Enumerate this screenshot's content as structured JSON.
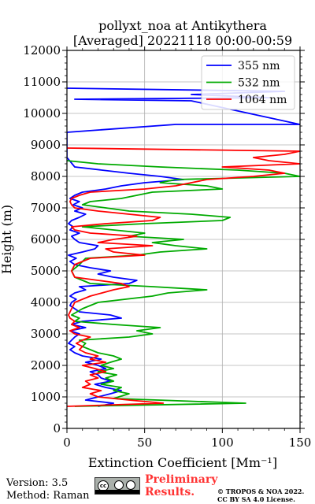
{
  "chart_data": {
    "type": "line",
    "title": "pollyxt_noa at Antikythera",
    "subtitle": "[Averaged] 20221118 00:00-00:59",
    "xlabel": "Extinction Coefficient [Mm⁻¹]",
    "ylabel": "Height (m)",
    "xlim": [
      0,
      150
    ],
    "ylim": [
      0,
      12000
    ],
    "x_ticks": [
      0,
      50,
      100,
      150
    ],
    "y_ticks": [
      0,
      1000,
      2000,
      3000,
      4000,
      5000,
      6000,
      7000,
      8000,
      9000,
      10000,
      11000,
      12000
    ],
    "grid": true,
    "legend_position": "top-right",
    "series": [
      {
        "name": "355 nm",
        "color": "#0000ff",
        "points": [
          [
            20,
            700
          ],
          [
            30,
            800
          ],
          [
            12,
            900
          ],
          [
            20,
            1000
          ],
          [
            28,
            1100
          ],
          [
            35,
            1200
          ],
          [
            25,
            1300
          ],
          [
            18,
            1400
          ],
          [
            28,
            1500
          ],
          [
            22,
            1600
          ],
          [
            20,
            1700
          ],
          [
            15,
            1800
          ],
          [
            25,
            1900
          ],
          [
            20,
            2000
          ],
          [
            12,
            2100
          ],
          [
            22,
            2200
          ],
          [
            10,
            2300
          ],
          [
            5,
            2400
          ],
          [
            2,
            2500
          ],
          [
            5,
            2600
          ],
          [
            1,
            2700
          ],
          [
            3,
            2800
          ],
          [
            5,
            2900
          ],
          [
            8,
            3000
          ],
          [
            2,
            3100
          ],
          [
            12,
            3200
          ],
          [
            3,
            3300
          ],
          [
            10,
            3400
          ],
          [
            35,
            3500
          ],
          [
            28,
            3600
          ],
          [
            8,
            3700
          ],
          [
            5,
            3800
          ],
          [
            2,
            3900
          ],
          [
            3,
            4000
          ],
          [
            6,
            4100
          ],
          [
            2,
            4200
          ],
          [
            5,
            4300
          ],
          [
            12,
            4400
          ],
          [
            8,
            4500
          ],
          [
            40,
            4600
          ],
          [
            45,
            4700
          ],
          [
            30,
            4800
          ],
          [
            20,
            4900
          ],
          [
            28,
            5000
          ],
          [
            15,
            5100
          ],
          [
            5,
            5200
          ],
          [
            2,
            5300
          ],
          [
            6,
            5400
          ],
          [
            1,
            5500
          ],
          [
            10,
            5600
          ],
          [
            18,
            5700
          ],
          [
            20,
            5800
          ],
          [
            8,
            5900
          ],
          [
            5,
            6000
          ],
          [
            3,
            6100
          ],
          [
            8,
            6200
          ],
          [
            2,
            6300
          ],
          [
            4,
            6400
          ],
          [
            1,
            6500
          ],
          [
            3,
            6600
          ],
          [
            8,
            6700
          ],
          [
            12,
            6800
          ],
          [
            5,
            6900
          ],
          [
            10,
            7000
          ],
          [
            4,
            7100
          ],
          [
            8,
            7200
          ],
          [
            2,
            7300
          ],
          [
            5,
            7400
          ],
          [
            10,
            7500
          ],
          [
            25,
            7600
          ],
          [
            35,
            7700
          ],
          [
            50,
            7800
          ],
          [
            75,
            7900
          ],
          [
            60,
            8000
          ],
          [
            40,
            8100
          ],
          [
            5,
            8300
          ],
          [
            0,
            8600
          ],
          [
            0,
            9000
          ],
          [
            0,
            9400
          ],
          [
            70,
            9650
          ],
          [
            150,
            9650
          ],
          [
            80,
            10400
          ],
          [
            5,
            10450
          ],
          [
            130,
            10500
          ],
          [
            80,
            10600
          ],
          [
            140,
            10700
          ],
          [
            0,
            10800
          ]
        ]
      },
      {
        "name": "532 nm",
        "color": "#00aa00",
        "points": [
          [
            5,
            700
          ],
          [
            115,
            800
          ],
          [
            30,
            950
          ],
          [
            40,
            1100
          ],
          [
            30,
            1200
          ],
          [
            35,
            1300
          ],
          [
            22,
            1400
          ],
          [
            30,
            1500
          ],
          [
            25,
            1600
          ],
          [
            32,
            1700
          ],
          [
            20,
            1800
          ],
          [
            30,
            1900
          ],
          [
            22,
            2000
          ],
          [
            28,
            2100
          ],
          [
            35,
            2200
          ],
          [
            30,
            2300
          ],
          [
            20,
            2400
          ],
          [
            15,
            2500
          ],
          [
            10,
            2600
          ],
          [
            12,
            2700
          ],
          [
            8,
            2800
          ],
          [
            40,
            2900
          ],
          [
            55,
            3000
          ],
          [
            45,
            3100
          ],
          [
            60,
            3200
          ],
          [
            30,
            3300
          ],
          [
            5,
            3400
          ],
          [
            8,
            3500
          ],
          [
            3,
            3600
          ],
          [
            10,
            3800
          ],
          [
            20,
            4000
          ],
          [
            55,
            4200
          ],
          [
            65,
            4300
          ],
          [
            90,
            4400
          ],
          [
            55,
            4500
          ],
          [
            15,
            4600
          ],
          [
            5,
            4800
          ],
          [
            3,
            5000
          ],
          [
            8,
            5200
          ],
          [
            12,
            5400
          ],
          [
            45,
            5500
          ],
          [
            60,
            5600
          ],
          [
            90,
            5700
          ],
          [
            70,
            5800
          ],
          [
            55,
            5900
          ],
          [
            75,
            6000
          ],
          [
            40,
            6100
          ],
          [
            50,
            6200
          ],
          [
            30,
            6300
          ],
          [
            10,
            6400
          ],
          [
            50,
            6500
          ],
          [
            100,
            6600
          ],
          [
            105,
            6700
          ],
          [
            80,
            6800
          ],
          [
            40,
            6900
          ],
          [
            25,
            7000
          ],
          [
            10,
            7100
          ],
          [
            15,
            7200
          ],
          [
            35,
            7300
          ],
          [
            45,
            7400
          ],
          [
            55,
            7500
          ],
          [
            100,
            7600
          ],
          [
            90,
            7700
          ],
          [
            60,
            7800
          ],
          [
            70,
            7900
          ],
          [
            150,
            8000
          ],
          [
            140,
            8100
          ],
          [
            110,
            8200
          ],
          [
            60,
            8300
          ],
          [
            20,
            8400
          ],
          [
            0,
            8500
          ]
        ]
      },
      {
        "name": "1064 nm",
        "color": "#ff0000",
        "points": [
          [
            0,
            700
          ],
          [
            62,
            800
          ],
          [
            40,
            900
          ],
          [
            20,
            1000
          ],
          [
            15,
            1100
          ],
          [
            22,
            1200
          ],
          [
            10,
            1300
          ],
          [
            15,
            1400
          ],
          [
            12,
            1500
          ],
          [
            20,
            1600
          ],
          [
            15,
            1700
          ],
          [
            25,
            1800
          ],
          [
            18,
            1900
          ],
          [
            10,
            2000
          ],
          [
            25,
            2100
          ],
          [
            15,
            2200
          ],
          [
            20,
            2300
          ],
          [
            12,
            2400
          ],
          [
            8,
            2500
          ],
          [
            10,
            2600
          ],
          [
            6,
            2700
          ],
          [
            10,
            2800
          ],
          [
            15,
            2900
          ],
          [
            5,
            3000
          ],
          [
            2,
            3100
          ],
          [
            8,
            3200
          ],
          [
            3,
            3300
          ],
          [
            5,
            3400
          ],
          [
            2,
            3500
          ],
          [
            1,
            3600
          ],
          [
            5,
            4000
          ],
          [
            15,
            4200
          ],
          [
            30,
            4400
          ],
          [
            40,
            4500
          ],
          [
            35,
            4600
          ],
          [
            5,
            4800
          ],
          [
            3,
            5000
          ],
          [
            5,
            5200
          ],
          [
            10,
            5300
          ],
          [
            15,
            5400
          ],
          [
            50,
            5500
          ],
          [
            30,
            5600
          ],
          [
            25,
            5700
          ],
          [
            55,
            5800
          ],
          [
            20,
            5900
          ],
          [
            30,
            6000
          ],
          [
            45,
            6100
          ],
          [
            15,
            6200
          ],
          [
            5,
            6300
          ],
          [
            3,
            6400
          ],
          [
            25,
            6500
          ],
          [
            55,
            6600
          ],
          [
            60,
            6700
          ],
          [
            40,
            6800
          ],
          [
            20,
            6900
          ],
          [
            5,
            7000
          ],
          [
            3,
            7100
          ],
          [
            2,
            7200
          ],
          [
            3,
            7300
          ],
          [
            8,
            7400
          ],
          [
            15,
            7500
          ],
          [
            50,
            7600
          ],
          [
            70,
            7700
          ],
          [
            80,
            7800
          ],
          [
            90,
            7900
          ],
          [
            120,
            8000
          ],
          [
            140,
            8100
          ],
          [
            130,
            8200
          ],
          [
            100,
            8300
          ],
          [
            150,
            8400
          ],
          [
            130,
            8500
          ],
          [
            120,
            8600
          ],
          [
            140,
            8700
          ],
          [
            150,
            8800
          ],
          [
            0,
            8900
          ]
        ]
      }
    ]
  },
  "footer": {
    "version": "Version: 3.5",
    "method": "Method: Raman",
    "preliminary_line1": "Preliminary",
    "preliminary_line2": "Results.",
    "copyright_line1": "© TROPOS & NOA 2022.",
    "copyright_line2": "CC BY SA 4.0 License.",
    "license_badge": "CC BY SA"
  }
}
